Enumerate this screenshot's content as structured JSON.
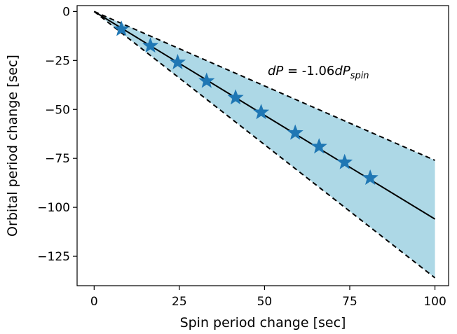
{
  "chart_data": {
    "type": "scatter",
    "xlabel": "Spin period change [sec]",
    "ylabel": "Orbital period change [sec]",
    "xlim": [
      -5,
      104
    ],
    "ylim": [
      -140,
      3
    ],
    "x_ticks": [
      0,
      25,
      50,
      75,
      100
    ],
    "y_ticks": [
      0,
      -25,
      -50,
      -75,
      -100,
      -125
    ],
    "x_tick_labels": [
      "0",
      "25",
      "50",
      "75",
      "100"
    ],
    "y_tick_labels": [
      "0",
      "−25",
      "−50",
      "−75",
      "−100",
      "−125"
    ],
    "grid": false,
    "annotation": {
      "prefix": "dP",
      "middle": " = -1.06",
      "var": "dP",
      "subscript": "spin"
    },
    "fit_line": {
      "x": [
        0,
        100
      ],
      "y": [
        0,
        -106
      ]
    },
    "band_upper": {
      "x": [
        0,
        100
      ],
      "y": [
        0,
        -76
      ]
    },
    "band_lower": {
      "x": [
        0,
        100
      ],
      "y": [
        0,
        -136
      ]
    },
    "points": {
      "x": [
        8,
        16.5,
        24.5,
        33,
        41.5,
        49,
        59,
        66,
        73.5,
        81
      ],
      "y": [
        -9,
        -17.5,
        -26,
        -35.5,
        -44,
        -51.5,
        -62,
        -69,
        -77,
        -85
      ]
    },
    "colors": {
      "band": "#add8e6",
      "points": "#1f77b4",
      "fit_line": "#000000",
      "band_edges": "#000000"
    }
  }
}
